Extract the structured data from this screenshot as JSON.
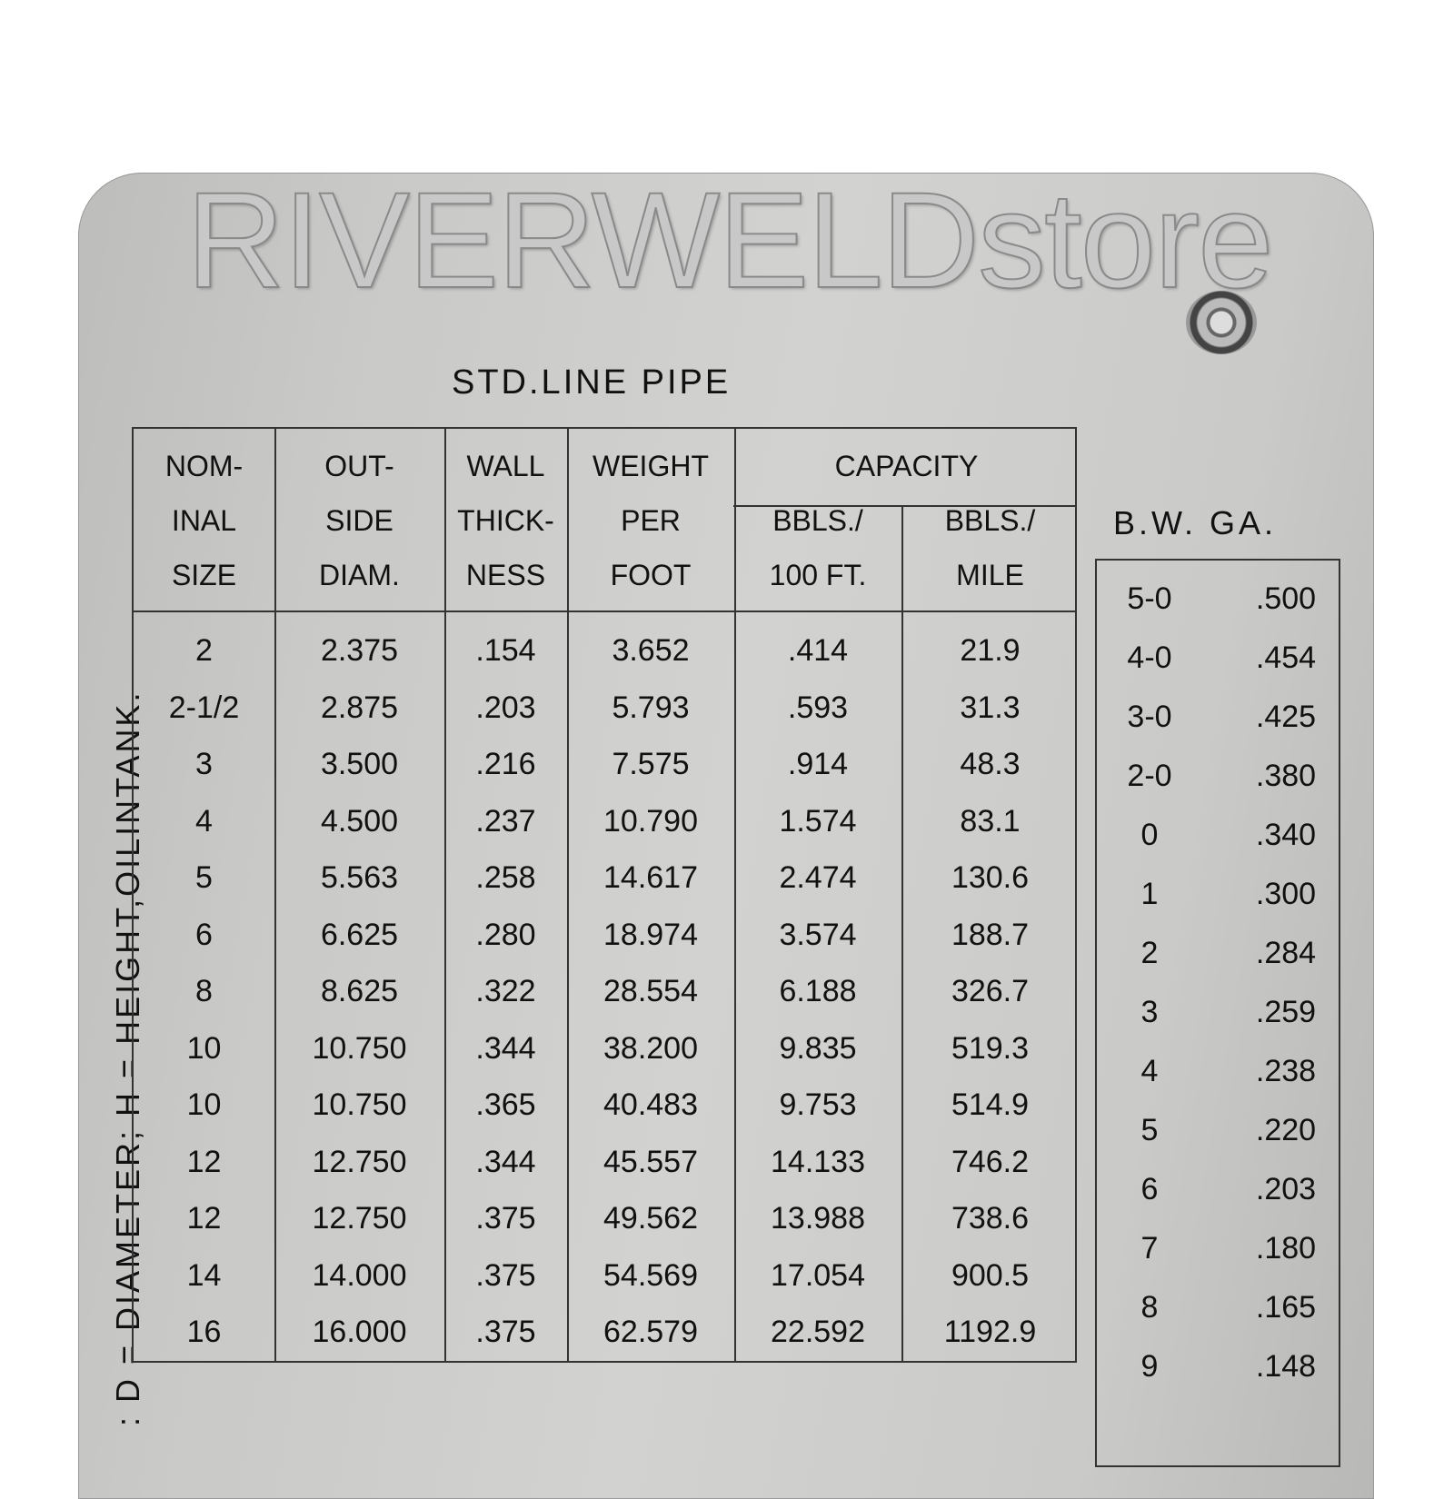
{
  "watermark": "RIVERWELDstore",
  "title": "STD.LINE PIPE",
  "side_note": ": D = DIAMETER; H = HEIGHT,OILINTANK.",
  "pipe_table": {
    "headers": [
      {
        "lines": [
          "NOM-",
          "INAL",
          "SIZE"
        ]
      },
      {
        "lines": [
          "OUT-",
          "SIDE",
          "DIAM."
        ]
      },
      {
        "lines": [
          "WALL",
          "THICK-",
          "NESS"
        ]
      },
      {
        "lines": [
          "WEIGHT",
          "PER",
          "FOOT"
        ]
      },
      {
        "lines": [
          "",
          "BBLS./",
          "100 FT."
        ]
      },
      {
        "lines": [
          "",
          "BBLS./",
          "MILE"
        ]
      }
    ],
    "group_header": "CAPACITY",
    "rows": [
      [
        "2",
        "2.375",
        ".154",
        "3.652",
        ".414",
        "21.9"
      ],
      [
        "2-1/2",
        "2.875",
        ".203",
        "5.793",
        ".593",
        "31.3"
      ],
      [
        "3",
        "3.500",
        ".216",
        "7.575",
        ".914",
        "48.3"
      ],
      [
        "4",
        "4.500",
        ".237",
        "10.790",
        "1.574",
        "83.1"
      ],
      [
        "5",
        "5.563",
        ".258",
        "14.617",
        "2.474",
        "130.6"
      ],
      [
        "6",
        "6.625",
        ".280",
        "18.974",
        "3.574",
        "188.7"
      ],
      [
        "8",
        "8.625",
        ".322",
        "28.554",
        "6.188",
        "326.7"
      ],
      [
        "10",
        "10.750",
        ".344",
        "38.200",
        "9.835",
        "519.3"
      ],
      [
        "10",
        "10.750",
        ".365",
        "40.483",
        "9.753",
        "514.9"
      ],
      [
        "12",
        "12.750",
        ".344",
        "45.557",
        "14.133",
        "746.2"
      ],
      [
        "12",
        "12.750",
        ".375",
        "49.562",
        "13.988",
        "738.6"
      ],
      [
        "14",
        "14.000",
        ".375",
        "54.569",
        "17.054",
        "900.5"
      ],
      [
        "16",
        "16.000",
        ".375",
        "62.579",
        "22.592",
        "1192.9"
      ]
    ]
  },
  "bw_table": {
    "header": "B.W. GA.",
    "rows": [
      [
        "5-0",
        ".500"
      ],
      [
        "4-0",
        ".454"
      ],
      [
        "3-0",
        ".425"
      ],
      [
        "2-0",
        ".380"
      ],
      [
        "0",
        ".340"
      ],
      [
        "1",
        ".300"
      ],
      [
        "2",
        ".284"
      ],
      [
        "3",
        ".259"
      ],
      [
        "4",
        ".238"
      ],
      [
        "5",
        ".220"
      ],
      [
        "6",
        ".203"
      ],
      [
        "7",
        ".180"
      ],
      [
        "8",
        ".165"
      ],
      [
        "9",
        ".148"
      ]
    ]
  }
}
